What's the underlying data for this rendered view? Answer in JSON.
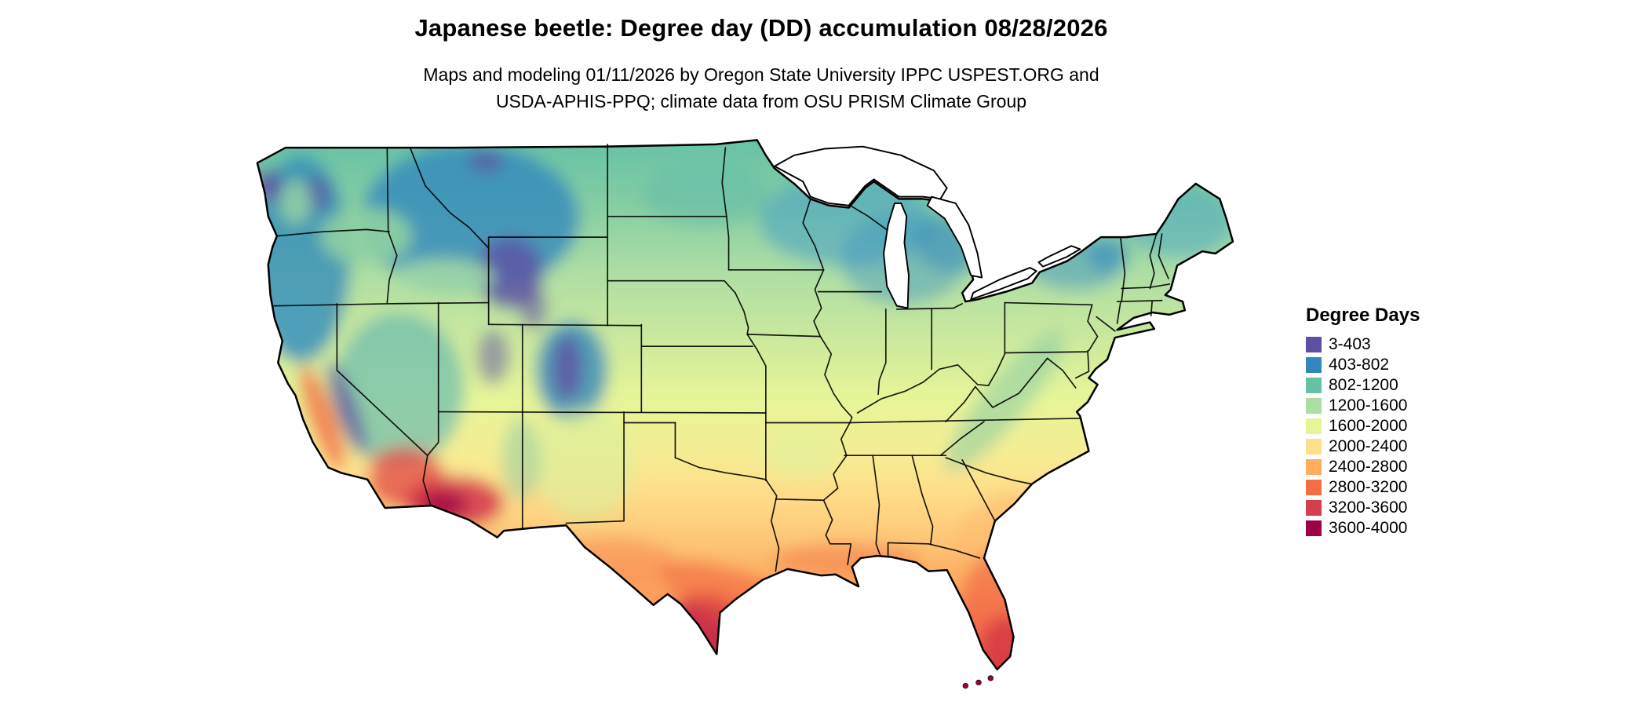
{
  "header": {
    "title": "Japanese beetle: Degree day (DD) accumulation 08/28/2026",
    "subtitle_line1": "Maps and modeling 01/11/2026 by Oregon State University IPPC USPEST.ORG and",
    "subtitle_line2": "USDA-APHIS-PPQ; climate data from OSU PRISM Climate Group"
  },
  "legend": {
    "title": "Degree Days",
    "entries": [
      {
        "label": "3-403",
        "color": "#5e4fa2"
      },
      {
        "label": "403-802",
        "color": "#3288bd"
      },
      {
        "label": "802-1200",
        "color": "#66c2a5"
      },
      {
        "label": "1200-1600",
        "color": "#abdda4"
      },
      {
        "label": "1600-2000",
        "color": "#e6f598"
      },
      {
        "label": "2000-2400",
        "color": "#fee08b"
      },
      {
        "label": "2400-2800",
        "color": "#fdae61"
      },
      {
        "label": "2800-3200",
        "color": "#f46d43"
      },
      {
        "label": "3200-3600",
        "color": "#d53e4f"
      },
      {
        "label": "3600-4000",
        "color": "#9e0142"
      }
    ]
  },
  "chart_data": {
    "type": "heatmap",
    "title": "Japanese beetle: Degree day (DD) accumulation 08/28/2026",
    "region": "Continental United States",
    "legend_title": "Degree Days",
    "bins": [
      "3-403",
      "403-802",
      "802-1200",
      "1200-1600",
      "1600-2000",
      "2000-2400",
      "2400-2800",
      "2800-3200",
      "3200-3600",
      "3600-4000"
    ],
    "bin_colors": [
      "#5e4fa2",
      "#3288bd",
      "#66c2a5",
      "#abdda4",
      "#e6f598",
      "#fee08b",
      "#fdae61",
      "#f46d43",
      "#d53e4f",
      "#9e0142"
    ],
    "gradient_trend": "low accumulation (blue/purple) in northern states and mountain west; high accumulation (red/maroon) in southern Texas, desert Southwest, Gulf Coast and southern Florida"
  }
}
